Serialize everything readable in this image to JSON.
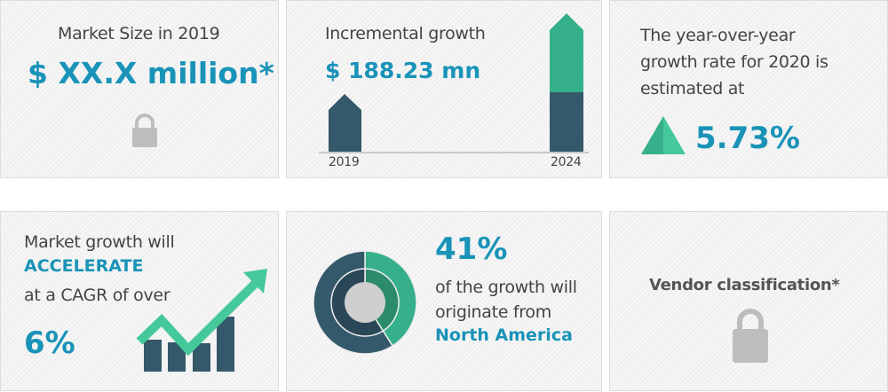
{
  "market_size": {
    "label": "Market Size in 2019",
    "value": "$ XX.X million*",
    "icon": "lock-icon"
  },
  "incremental": {
    "label": "Incremental growth",
    "value": "$ 188.23 mn",
    "year_start": "2019",
    "year_end": "2024"
  },
  "yoy": {
    "label_lines": [
      "The year-over-year",
      "growth rate for 2020 is",
      "estimated at"
    ],
    "value": "5.73%",
    "icon": "triangle-up-icon"
  },
  "cagr": {
    "line1": "Market growth will",
    "highlight": "ACCELERATE",
    "line3": "at a CAGR of over",
    "value": "6%",
    "icon": "growth-chart-arrow-icon"
  },
  "region": {
    "value": "41%",
    "line1": "of the growth will",
    "line2": "originate from",
    "region": "North America",
    "share": 0.41
  },
  "vendor": {
    "label": "Vendor classification*",
    "icon": "lock-icon"
  },
  "colors": {
    "blue": "#1a93b8",
    "dark": "#34596a",
    "green": "#36b08a",
    "gray": "#444444"
  }
}
